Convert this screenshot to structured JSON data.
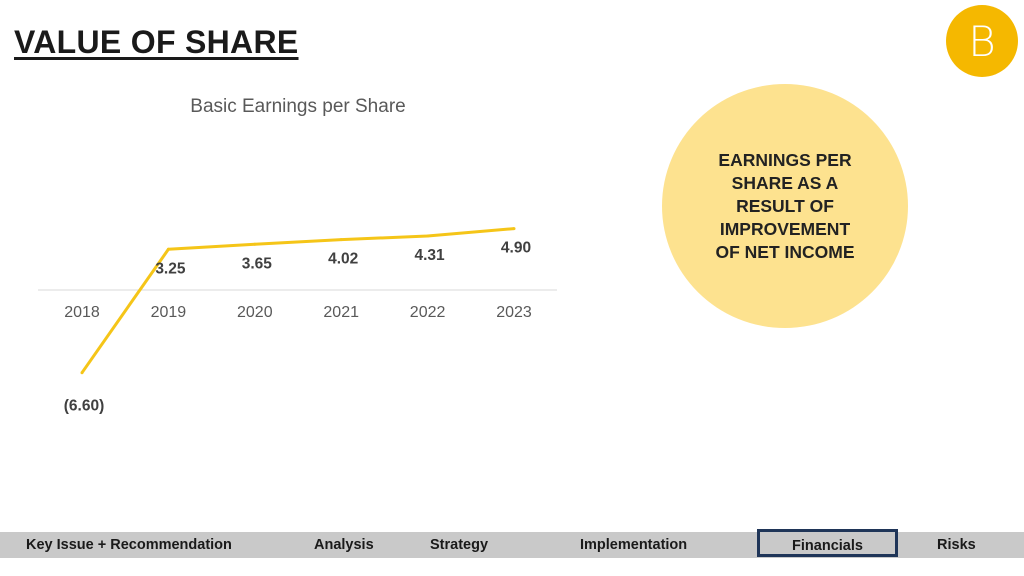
{
  "header": {
    "title": "VALUE OF SHARE",
    "logo_letter": "B"
  },
  "callout": {
    "text": "EARNINGS PER\nSHARE AS A\nRESULT OF\nIMPROVEMENT\nOF NET INCOME"
  },
  "colors": {
    "line": "#f5c518",
    "logo": "#f5b800",
    "circle": "#fde28f",
    "nav_bg": "#c9c9c9",
    "nav_active_border": "#1f3558"
  },
  "chart_data": {
    "type": "line",
    "title": "Basic Earnings per Share",
    "categories": [
      "2018",
      "2019",
      "2020",
      "2021",
      "2022",
      "2023"
    ],
    "series": [
      {
        "values": [
          -6.6,
          3.25,
          3.65,
          4.02,
          4.31,
          4.9
        ],
        "labels": [
          "(6.60)",
          "3.25",
          "3.65",
          "4.02",
          "4.31",
          "4.90"
        ]
      }
    ],
    "xlabel": "",
    "ylabel": "",
    "ylim": [
      -7,
      5
    ],
    "grid": false,
    "legend": "none"
  },
  "nav": {
    "items": [
      {
        "label": "Key Issue + Recommendation"
      },
      {
        "label": "Analysis"
      },
      {
        "label": "Strategy"
      },
      {
        "label": "Implementation"
      },
      {
        "label": "Financials",
        "active": true
      },
      {
        "label": "Risks"
      }
    ]
  }
}
